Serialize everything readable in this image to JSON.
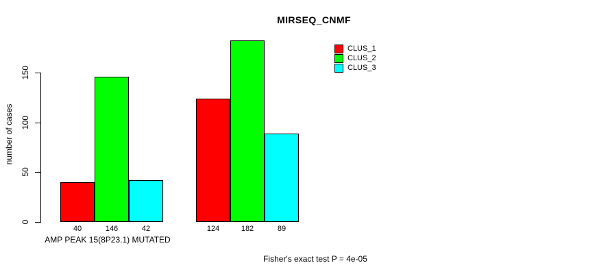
{
  "chart_data": {
    "type": "bar",
    "title": "MIRSEQ_CNMF",
    "ylabel": "number of cases",
    "xlabel": "",
    "categories": [
      "AMP PEAK 15(8P23.1) MUTATED",
      ""
    ],
    "series": [
      {
        "name": "CLUS_1",
        "color": "#ff0000",
        "values": [
          40,
          124
        ]
      },
      {
        "name": "CLUS_2",
        "color": "#00ff00",
        "values": [
          146,
          182
        ]
      },
      {
        "name": "CLUS_3",
        "color": "#00ffff",
        "values": [
          42,
          89
        ]
      }
    ],
    "bar_value_labels": [
      [
        40,
        146,
        42
      ],
      [
        124,
        182,
        89
      ]
    ],
    "yticks": [
      0,
      50,
      100,
      150
    ],
    "ylim": [
      0,
      190
    ],
    "grid": false,
    "legend_position": "top-right",
    "legend": [
      {
        "label": "CLUS_1",
        "color": "#ff0000"
      },
      {
        "label": "CLUS_2",
        "color": "#00ff00"
      },
      {
        "label": "CLUS_3",
        "color": "#00ffff"
      }
    ],
    "annotation": "Fisher's exact test P = 4e-05",
    "axis_color": "#000000",
    "bar_border_color": "#000000",
    "background_color": "#ffffff"
  }
}
